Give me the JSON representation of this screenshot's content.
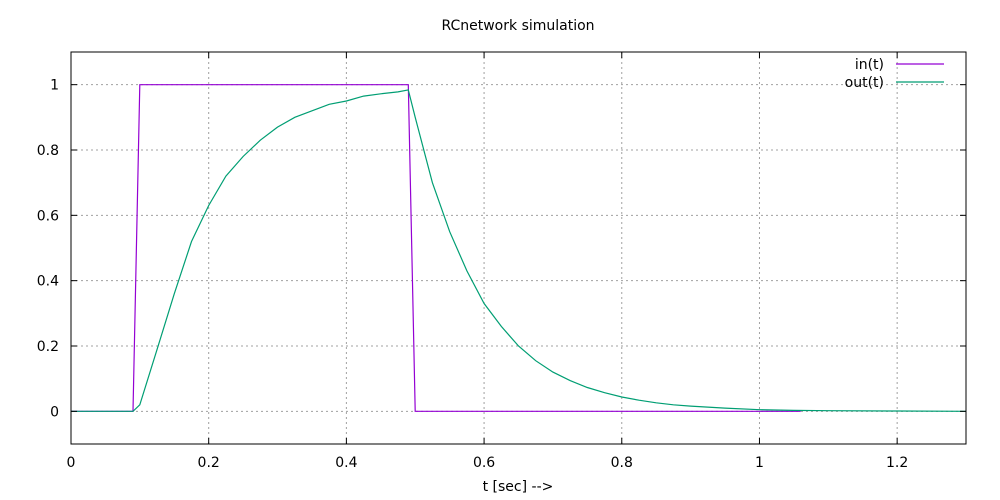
{
  "colors": {
    "in": "#9400d3",
    "out": "#009e73",
    "grid": "#a0a0a0",
    "axis": "#000000"
  },
  "chart_data": {
    "type": "line",
    "title": "RCnetwork simulation",
    "xlabel": "t [sec] -->",
    "ylabel": "",
    "xlim": [
      0,
      1.3
    ],
    "ylim": [
      -0.1,
      1.1
    ],
    "grid": true,
    "legend_position": "top-right",
    "x_ticks": [
      0,
      0.2,
      0.4,
      0.6,
      0.8,
      1,
      1.2
    ],
    "x_tick_labels": [
      "0",
      "0.2",
      "0.4",
      "0.6",
      "0.8",
      "1",
      "1.2"
    ],
    "y_ticks": [
      0,
      0.2,
      0.4,
      0.6,
      0.8,
      1
    ],
    "y_tick_labels": [
      "0",
      "0.2",
      "0.4",
      "0.6",
      "0.8",
      "1"
    ],
    "series": [
      {
        "name": "in(t)",
        "color": "#9400d3",
        "x": [
          0,
          0.09,
          0.1,
          0.49,
          0.5,
          1.06
        ],
        "y": [
          0,
          0,
          1,
          1,
          0,
          0
        ]
      },
      {
        "name": "out(t)",
        "color": "#009e73",
        "x": [
          0,
          0.09,
          0.1,
          0.125,
          0.15,
          0.175,
          0.2,
          0.225,
          0.25,
          0.275,
          0.3,
          0.325,
          0.35,
          0.375,
          0.4,
          0.425,
          0.45,
          0.475,
          0.49,
          0.5,
          0.525,
          0.55,
          0.575,
          0.6,
          0.625,
          0.65,
          0.675,
          0.7,
          0.725,
          0.75,
          0.775,
          0.8,
          0.825,
          0.85,
          0.875,
          0.9,
          0.95,
          1.0,
          1.05,
          1.1,
          1.2,
          1.3
        ],
        "y": [
          0,
          0,
          0.02,
          0.19,
          0.36,
          0.52,
          0.63,
          0.72,
          0.78,
          0.83,
          0.87,
          0.9,
          0.92,
          0.94,
          0.95,
          0.965,
          0.972,
          0.978,
          0.984,
          0.9,
          0.7,
          0.55,
          0.43,
          0.33,
          0.26,
          0.2,
          0.155,
          0.12,
          0.094,
          0.073,
          0.057,
          0.044,
          0.034,
          0.026,
          0.02,
          0.016,
          0.01,
          0.005,
          0.003,
          0.002,
          0.001,
          0.0
        ]
      }
    ]
  }
}
